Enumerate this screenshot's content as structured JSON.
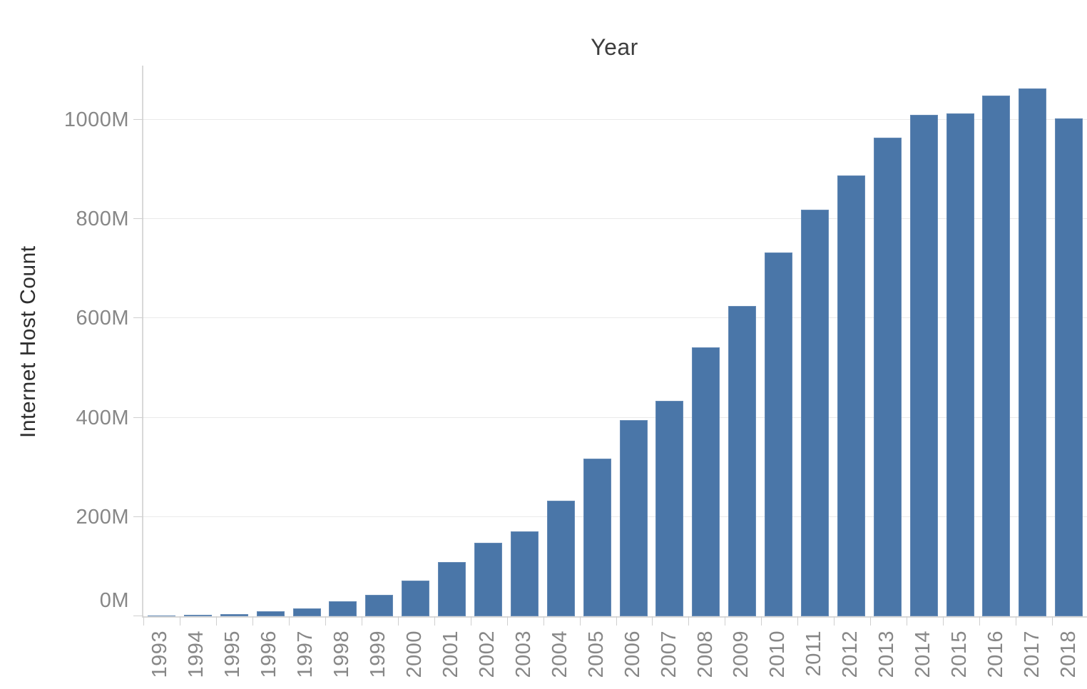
{
  "chart_data": {
    "type": "bar",
    "title": "Year",
    "xlabel": "Year",
    "ylabel": "Internet Host Count",
    "unit": "millions",
    "categories": [
      "1993",
      "1994",
      "1995",
      "1996",
      "1997",
      "1998",
      "1999",
      "2000",
      "2001",
      "2002",
      "2003",
      "2004",
      "2005",
      "2006",
      "2007",
      "2008",
      "2009",
      "2010",
      "2011",
      "2012",
      "2013",
      "2014",
      "2015",
      "2016",
      "2017",
      "2018"
    ],
    "values": [
      1.3,
      2.2,
      4.9,
      9.5,
      16.1,
      29.7,
      43.2,
      72.4,
      109.6,
      147.3,
      171.6,
      233.1,
      317.6,
      394.9,
      433.2,
      541.7,
      625.2,
      732.7,
      818.4,
      888.2,
      963.5,
      1010.3,
      1012.7,
      1048.8,
      1062.7,
      1003.4
    ],
    "ytick_values": [
      0,
      200,
      400,
      600,
      800,
      1000
    ],
    "ytick_labels": [
      "0M",
      "200M",
      "400M",
      "600M",
      "800M",
      "1000M"
    ],
    "ylim": [
      0,
      1112
    ],
    "grid": true,
    "legend": "none",
    "bar_color": "#4a76a8",
    "gridline_color": "#eaeaea",
    "axis_line_color": "#d9d9d9",
    "tick_label_color": "#878787",
    "title_color": "#3d3d3d",
    "background_color": "#ffffff"
  }
}
